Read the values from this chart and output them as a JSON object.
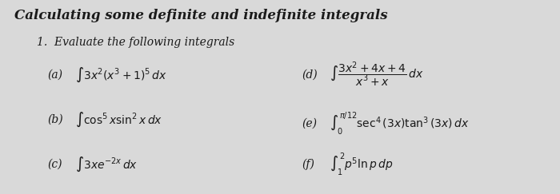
{
  "title": "Calculating some definite and indefinite integrals",
  "subtitle": "1.  Evaluate the following integrals",
  "background_color": "#d9d9d9",
  "text_color": "#1a1a1a",
  "items": [
    {
      "label": "(a)",
      "expr": "$\\int 3x^2(x^3+1)^5\\, dx$",
      "col": 0
    },
    {
      "label": "(b)",
      "expr": "$\\int \\cos^5 x \\sin^2 x\\, dx$",
      "col": 0
    },
    {
      "label": "(c)",
      "expr": "$\\int 3xe^{-2x}\\, dx$",
      "col": 0
    },
    {
      "label": "(d)",
      "expr": "$\\int \\dfrac{3x^2+4x+4}{x^3+x}\\, dx$",
      "col": 1
    },
    {
      "label": "(e)",
      "expr": "$\\int_0^{\\pi/12} \\sec^4(3x)\\tan^3(3x)\\, dx$",
      "col": 1
    },
    {
      "label": "(f)",
      "expr": "$\\int_1^{2} p^5 \\ln p\\, dp$",
      "col": 1
    }
  ]
}
